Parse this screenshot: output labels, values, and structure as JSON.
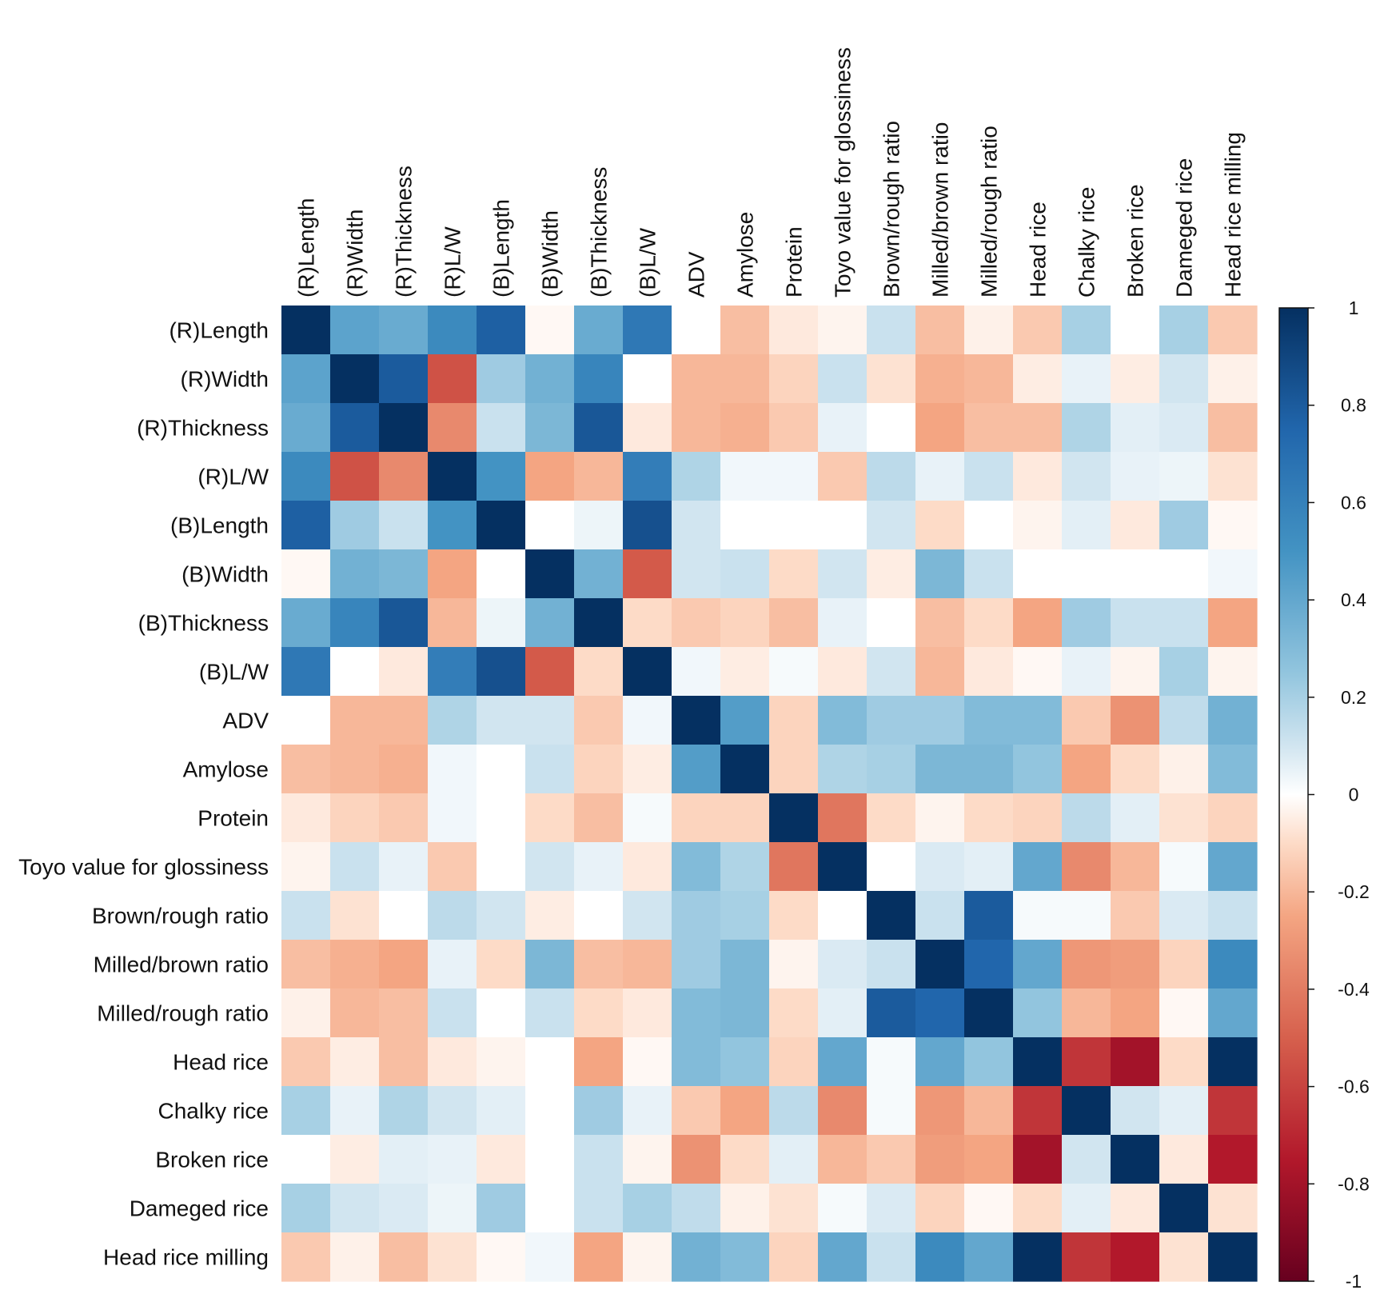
{
  "chart_data": {
    "type": "heatmap",
    "title": "",
    "xlabel": "",
    "ylabel": "",
    "variables": [
      "(R)Length",
      "(R)Width",
      "(R)Thickness",
      "(R)L/W",
      "(B)Length",
      "(B)Width",
      "(B)Thickness",
      "(B)L/W",
      "ADV",
      "Amylose",
      "Protein",
      "Toyo value for glossiness",
      "Brown/rough ratio",
      "Milled/brown ratio",
      "Milled/rough ratio",
      "Head rice",
      "Chalky rice",
      "Broken rice",
      "Dameged rice",
      "Head rice milling"
    ],
    "row_labels": [
      "(R)Length",
      "(R)Width",
      "(R)Thickness",
      "(R)L/W",
      "(B)Length",
      "(B)Width",
      "(B)Thickness",
      "(B)L/W",
      "ADV",
      "Amylose",
      "Protein",
      "Toyo value for glossiness",
      "Brown/rough ratio",
      "Milled/brown ratio",
      "Milled/rough ratio",
      "Head rice",
      "Chalky rice",
      "Broken rice",
      "Dameged rice",
      "Head rice milling"
    ],
    "matrix": [
      [
        1,
        0.42,
        0.38,
        0.55,
        0.78,
        -0.02,
        0.38,
        0.65,
        0,
        -0.18,
        -0.06,
        -0.03,
        0.12,
        -0.18,
        -0.04,
        -0.15,
        0.2,
        0,
        0.2,
        -0.15
      ],
      [
        0.42,
        1,
        0.8,
        -0.55,
        0.22,
        0.35,
        0.58,
        0,
        -0.2,
        -0.2,
        -0.12,
        0.12,
        -0.08,
        -0.22,
        -0.2,
        -0.05,
        0.05,
        -0.05,
        0.1,
        -0.04
      ],
      [
        0.38,
        0.8,
        1,
        -0.35,
        0.12,
        0.32,
        0.82,
        -0.06,
        -0.2,
        -0.22,
        -0.15,
        0.05,
        0,
        -0.25,
        -0.18,
        -0.18,
        0.18,
        0.06,
        0.08,
        -0.18
      ],
      [
        0.55,
        -0.55,
        -0.35,
        1,
        0.5,
        -0.25,
        -0.2,
        0.62,
        0.18,
        0.03,
        0.03,
        -0.15,
        0.15,
        0.05,
        0.12,
        -0.06,
        0.1,
        0.05,
        0.04,
        -0.08
      ],
      [
        0.78,
        0.22,
        0.12,
        0.5,
        1,
        0,
        0.04,
        0.85,
        0.1,
        0,
        0,
        0,
        0.1,
        -0.1,
        0,
        -0.03,
        0.06,
        -0.06,
        0.22,
        -0.02
      ],
      [
        -0.02,
        0.35,
        0.32,
        -0.25,
        0,
        1,
        0.35,
        -0.52,
        0.1,
        0.12,
        -0.1,
        0.1,
        -0.05,
        0.32,
        0.12,
        0,
        0,
        0,
        0,
        0.03
      ],
      [
        0.38,
        0.58,
        0.82,
        -0.2,
        0.04,
        0.35,
        1,
        -0.1,
        -0.15,
        -0.12,
        -0.18,
        0.05,
        0,
        -0.18,
        -0.1,
        -0.25,
        0.22,
        0.12,
        0.12,
        -0.25
      ],
      [
        0.65,
        0,
        -0.06,
        0.62,
        0.85,
        -0.52,
        -0.1,
        1,
        0.03,
        -0.05,
        0.02,
        -0.06,
        0.1,
        -0.2,
        -0.06,
        -0.02,
        0.05,
        -0.03,
        0.2,
        -0.03
      ],
      [
        0,
        -0.2,
        -0.2,
        0.18,
        0.1,
        0.1,
        -0.15,
        0.03,
        1,
        0.45,
        -0.12,
        0.3,
        0.22,
        0.22,
        0.3,
        0.3,
        -0.15,
        -0.32,
        0.14,
        0.35
      ],
      [
        -0.18,
        -0.2,
        -0.22,
        0.03,
        0,
        0.12,
        -0.12,
        -0.05,
        0.45,
        1,
        -0.12,
        0.18,
        0.2,
        0.32,
        0.32,
        0.25,
        -0.25,
        -0.1,
        -0.04,
        0.3
      ],
      [
        -0.06,
        -0.12,
        -0.15,
        0.03,
        0,
        -0.1,
        -0.18,
        0.02,
        -0.12,
        -0.12,
        1,
        -0.42,
        -0.1,
        -0.03,
        -0.1,
        -0.12,
        0.15,
        0.06,
        -0.08,
        -0.12
      ],
      [
        -0.03,
        0.12,
        0.05,
        -0.15,
        0,
        0.1,
        0.05,
        -0.06,
        0.3,
        0.18,
        -0.42,
        1,
        0,
        0.08,
        0.06,
        0.4,
        -0.35,
        -0.2,
        0.02,
        0.4
      ],
      [
        0.12,
        -0.08,
        0,
        0.15,
        0.1,
        -0.05,
        0,
        0.1,
        0.22,
        0.2,
        -0.1,
        0,
        1,
        0.12,
        0.8,
        0.02,
        0.02,
        -0.15,
        0.08,
        0.12
      ],
      [
        -0.18,
        -0.22,
        -0.25,
        0.05,
        -0.1,
        0.32,
        -0.18,
        -0.2,
        0.22,
        0.32,
        -0.03,
        0.08,
        0.12,
        1,
        0.75,
        0.4,
        -0.3,
        -0.28,
        -0.12,
        0.55
      ],
      [
        -0.04,
        -0.2,
        -0.18,
        0.12,
        0,
        0.12,
        -0.1,
        -0.06,
        0.3,
        0.32,
        -0.1,
        0.06,
        0.8,
        0.75,
        1,
        0.25,
        -0.2,
        -0.25,
        -0.02,
        0.4
      ],
      [
        -0.15,
        -0.05,
        -0.18,
        -0.06,
        -0.03,
        0,
        -0.25,
        -0.02,
        0.3,
        0.25,
        -0.12,
        0.4,
        0.02,
        0.4,
        0.25,
        1,
        -0.65,
        -0.8,
        -0.1,
        1
      ],
      [
        0.2,
        0.05,
        0.18,
        0.1,
        0.06,
        0,
        0.22,
        0.05,
        -0.15,
        -0.25,
        0.15,
        -0.35,
        0.02,
        -0.3,
        -0.2,
        -0.65,
        1,
        0.1,
        0.06,
        -0.65
      ],
      [
        0,
        -0.05,
        0.06,
        0.05,
        -0.06,
        0,
        0.12,
        -0.03,
        -0.32,
        -0.1,
        0.06,
        -0.2,
        -0.15,
        -0.28,
        -0.25,
        -0.8,
        0.1,
        1,
        -0.06,
        -0.75
      ],
      [
        0.2,
        0.1,
        0.08,
        0.04,
        0.22,
        0,
        0.12,
        0.2,
        0.14,
        -0.04,
        -0.08,
        0.02,
        0.08,
        -0.12,
        -0.02,
        -0.1,
        0.06,
        -0.06,
        1,
        -0.08
      ],
      [
        -0.15,
        -0.04,
        -0.18,
        -0.08,
        -0.02,
        0.03,
        -0.25,
        -0.03,
        0.35,
        0.3,
        -0.12,
        0.4,
        0.12,
        0.55,
        0.4,
        1,
        -0.65,
        -0.75,
        -0.08,
        1
      ]
    ],
    "color_scale": {
      "range": [
        -1,
        1
      ],
      "ticks": [
        "1",
        "0.8",
        "0.6",
        "0.4",
        "0.2",
        "0",
        "-0.2",
        "-0.4",
        "-0.6",
        "-0.8",
        "-1"
      ],
      "stops": [
        {
          "value": -1,
          "color": "#67001f"
        },
        {
          "value": -0.75,
          "color": "#b2182b"
        },
        {
          "value": -0.5,
          "color": "#d6604d"
        },
        {
          "value": -0.25,
          "color": "#f4a582"
        },
        {
          "value": -0.1,
          "color": "#fddbc7"
        },
        {
          "value": 0,
          "color": "#ffffff"
        },
        {
          "value": 0.1,
          "color": "#d1e5f0"
        },
        {
          "value": 0.25,
          "color": "#92c5de"
        },
        {
          "value": 0.5,
          "color": "#4393c3"
        },
        {
          "value": 0.75,
          "color": "#2166ac"
        },
        {
          "value": 1,
          "color": "#053061"
        }
      ]
    },
    "legend_position": "right"
  }
}
